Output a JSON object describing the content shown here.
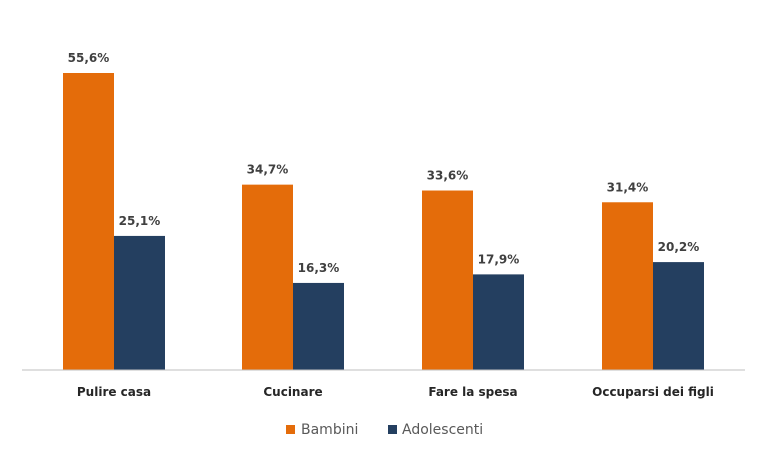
{
  "chart_data": {
    "type": "bar",
    "categories": [
      "Pulire casa",
      "Cucinare",
      "Fare la spesa",
      "Occuparsi dei figli"
    ],
    "series": [
      {
        "name": "Bambini",
        "values": [
          55.6,
          34.7,
          33.6,
          31.4
        ],
        "labels": [
          "55,6%",
          "34,7%",
          "33,6%",
          "31,4%"
        ],
        "color": "#E46C0A"
      },
      {
        "name": "Adolescenti",
        "values": [
          25.1,
          16.3,
          17.9,
          20.2
        ],
        "labels": [
          "25,1%",
          "16,3%",
          "17,9%",
          "20,2%"
        ],
        "color": "#243F60"
      }
    ],
    "title": "",
    "xlabel": "",
    "ylabel": "",
    "ylim": [
      0,
      60
    ],
    "grid": false,
    "legend": "bottom",
    "axis_color": "#BFBFBF"
  }
}
